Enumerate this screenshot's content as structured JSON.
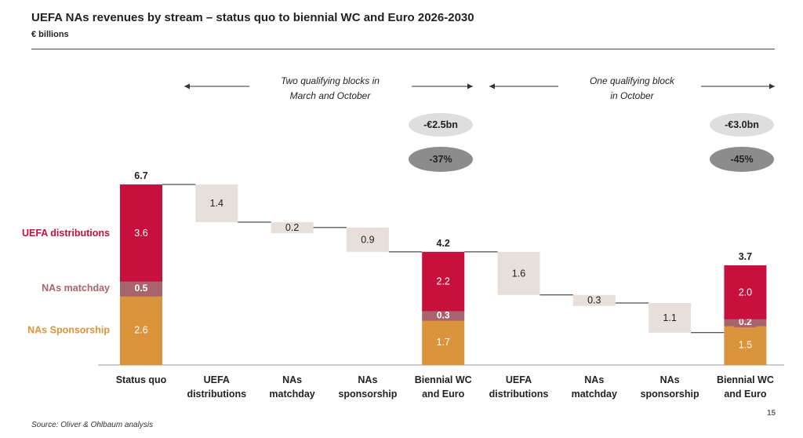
{
  "title": "UEFA NAs revenues by stream – status quo to biennial WC and Euro 2026-2030",
  "subtitle": "€ billions",
  "source": "Source: Oliver & Ohlbaum analysis",
  "page_number": "15",
  "annotations": {
    "left_period": [
      "Two qualifying blocks in",
      "March and October"
    ],
    "right_period": [
      "One qualifying block",
      "in October"
    ],
    "left_change_abs": "-€2.5bn",
    "left_change_pct": "-37%",
    "right_change_abs": "-€3.0bn",
    "right_change_pct": "-45%"
  },
  "colors": {
    "uefa": "#c8103e",
    "matchday": "#a8646c",
    "sponsorship": "#d9943c",
    "decrease": "#e6dfdc",
    "bubble_light": "#dedede",
    "bubble_dark": "#8c8c8c"
  },
  "chart_data": {
    "type": "bar",
    "subtype": "waterfall",
    "categories": [
      [
        "Status quo"
      ],
      [
        "UEFA",
        "distributions"
      ],
      [
        "NAs",
        "matchday"
      ],
      [
        "NAs",
        "sponsorship"
      ],
      [
        "Biennial WC",
        "and Euro"
      ],
      [
        "UEFA",
        "distributions"
      ],
      [
        "NAs",
        "matchday"
      ],
      [
        "NAs",
        "sponsorship"
      ],
      [
        "Biennial WC",
        "and Euro"
      ]
    ],
    "series": [
      {
        "name": "UEFA distributions",
        "color": "#c8103e"
      },
      {
        "name": "NAs matchday",
        "color": "#a8646c"
      },
      {
        "name": "NAs Sponsorship",
        "color": "#d9943c"
      }
    ],
    "bars": [
      {
        "kind": "stack",
        "total": "6.7",
        "segments": [
          {
            "series": "NAs Sponsorship",
            "value": 2.6,
            "label": "2.6"
          },
          {
            "series": "NAs matchday",
            "value": 0.5,
            "label": "0.5"
          },
          {
            "series": "UEFA distributions",
            "value": 3.6,
            "label": "3.6"
          }
        ]
      },
      {
        "kind": "decrease",
        "value": 1.4,
        "label": "1.4"
      },
      {
        "kind": "decrease",
        "value": 0.2,
        "label": "0.2"
      },
      {
        "kind": "decrease",
        "value": 0.9,
        "label": "0.9"
      },
      {
        "kind": "stack",
        "total": "4.2",
        "segments": [
          {
            "series": "NAs Sponsorship",
            "value": 1.7,
            "label": "1.7"
          },
          {
            "series": "NAs matchday",
            "value": 0.3,
            "label": "0.3"
          },
          {
            "series": "UEFA distributions",
            "value": 2.2,
            "label": "2.2"
          }
        ]
      },
      {
        "kind": "decrease",
        "value": 1.6,
        "label": "1.6"
      },
      {
        "kind": "decrease",
        "value": 0.3,
        "label": "0.3"
      },
      {
        "kind": "decrease",
        "value": 1.1,
        "label": "1.1"
      },
      {
        "kind": "stack",
        "total": "3.7",
        "segments": [
          {
            "series": "NAs Sponsorship",
            "value": 1.5,
            "label": "1.5"
          },
          {
            "series": "NAs matchday",
            "value": 0.2,
            "label": "0.2"
          },
          {
            "series": "UEFA distributions",
            "value": 2.0,
            "label": "2.0"
          }
        ]
      }
    ],
    "ylim": [
      0,
      6.7
    ],
    "legend": "left",
    "grid": false
  }
}
